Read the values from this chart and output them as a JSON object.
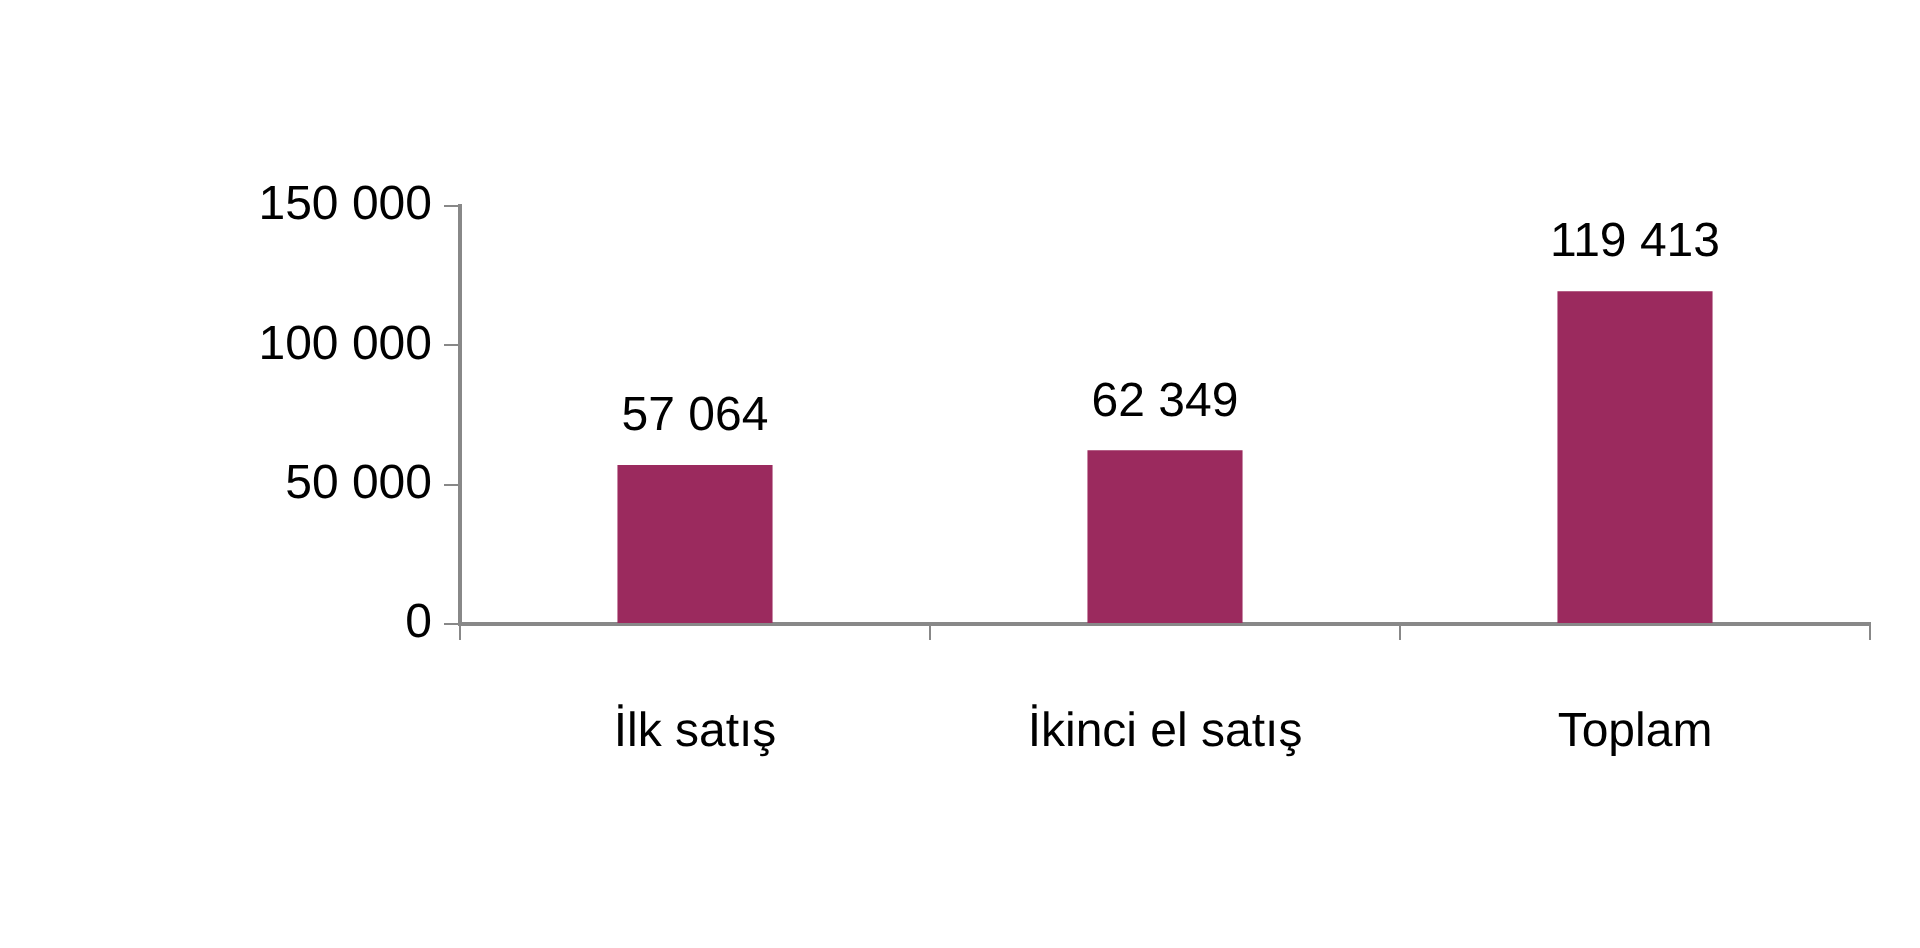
{
  "chart_data": {
    "type": "bar",
    "categories": [
      "İlk satış",
      "İkinci el satış",
      "Toplam"
    ],
    "values": [
      57064,
      62349,
      119413
    ],
    "color": "#9b2a5e",
    "value_labels": [
      "57 064",
      "62 349",
      "119 413"
    ],
    "ylim": [
      0,
      150000
    ],
    "yticks": [
      {
        "value": 0,
        "label": "0"
      },
      {
        "value": 50000,
        "label": "50 000"
      },
      {
        "value": 100000,
        "label": "100 000"
      },
      {
        "value": 150000,
        "label": "150 000"
      }
    ],
    "grid": false,
    "legend": false
  }
}
